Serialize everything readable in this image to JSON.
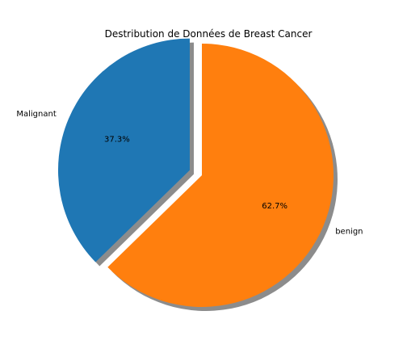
{
  "chart_data": {
    "type": "pie",
    "title": "Destribution de Données de Breast Cancer",
    "slices": [
      {
        "label": "Malignant",
        "value": 37.3,
        "pct_label": "37.3%",
        "color": "#1f77b4",
        "exploded": true
      },
      {
        "label": "benign",
        "value": 62.7,
        "pct_label": "62.7%",
        "color": "#ff7f0e",
        "exploded": false
      }
    ],
    "shadow": true,
    "start_angle_deg": 90,
    "direction": "counterclockwise"
  }
}
